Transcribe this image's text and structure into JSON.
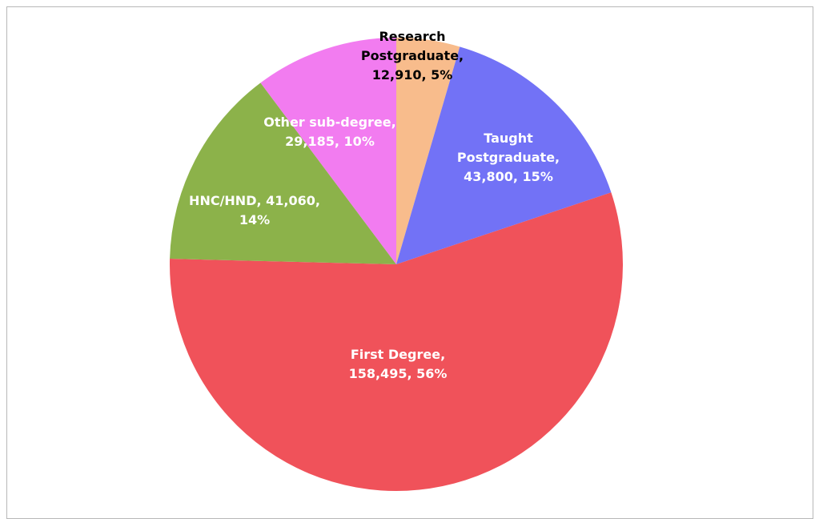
{
  "chart_data": {
    "type": "pie",
    "values": [
      12910,
      43800,
      158495,
      41060,
      29185
    ],
    "value_labels": [
      "Research Postgraduate, 12,910, 5%",
      "Taught Postgraduate, 43,800, 15%",
      "First Degree, 158,495, 56%",
      "HNC/HND, 41,060, 14%",
      "Other sub-degree, 29,185, 10%"
    ],
    "colors": [
      "#f8bc8c",
      "#7272f6",
      "#f0525a",
      "#8cb24a",
      "#f27cf0"
    ],
    "label_colors": [
      "#000000",
      "#ffffff",
      "#ffffff",
      "#ffffff",
      "#ffffff"
    ],
    "start_angle": 0,
    "direction": "clockwise"
  }
}
